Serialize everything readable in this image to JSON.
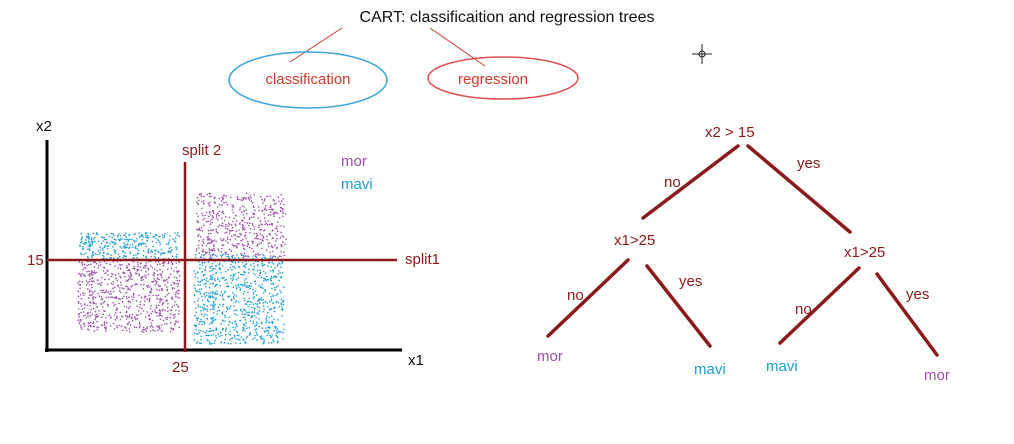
{
  "title": "CART: classificaition and regression trees",
  "categories": {
    "classification": "classification",
    "regression": "regression"
  },
  "scatter": {
    "x_label": "x1",
    "y_label": "x2",
    "split1_label": "split1",
    "split2_label": "split 2",
    "x_split_value": "25",
    "y_split_value": "15",
    "legend": {
      "mor": "mor",
      "mavi": "mavi"
    }
  },
  "tree": {
    "root": "x2 > 15",
    "left_node": "x1>25",
    "right_node": "x1>25",
    "edge_no": "no",
    "edge_yes": "yes",
    "leaves": [
      "mor",
      "mavi",
      "mavi",
      "mor"
    ]
  },
  "colors": {
    "dark_red": "#8b1a1a",
    "mor": "#9b4fa8",
    "mavi": "#1ba1d6",
    "oval_blue": "#3aa6dc",
    "oval_red": "#e05050"
  }
}
